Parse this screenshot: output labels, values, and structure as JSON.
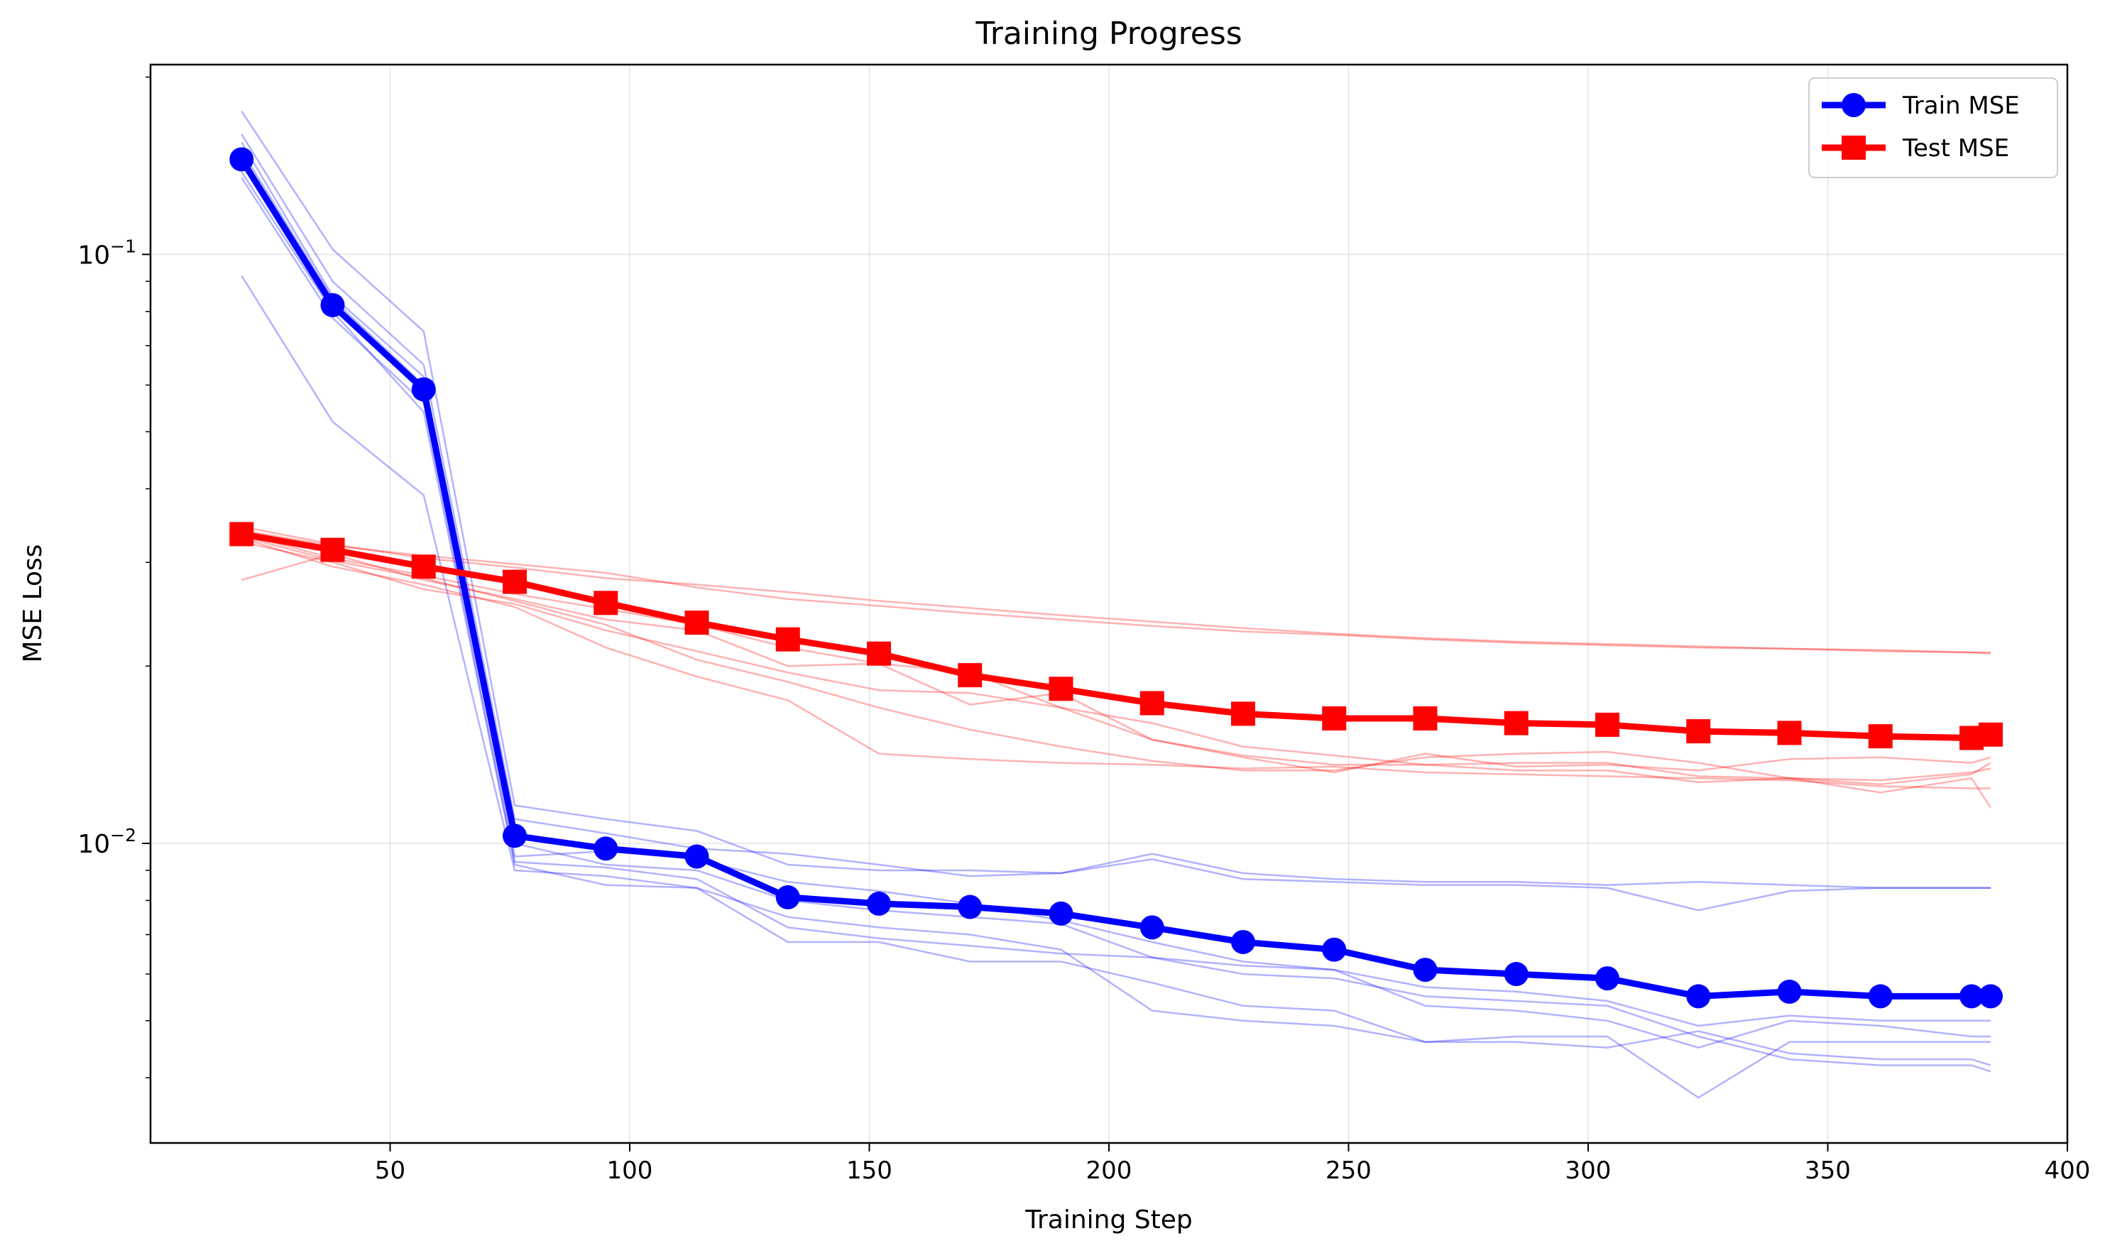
{
  "chart_data": {
    "type": "line",
    "title": "Training Progress",
    "xlabel": "Training Step",
    "ylabel": "MSE Loss",
    "xlim": [
      0,
      400
    ],
    "ylim": [
      0.0031,
      0.21
    ],
    "yscale": "log",
    "grid": true,
    "legend": "top-right",
    "x_ticks": [
      50,
      100,
      150,
      200,
      250,
      300,
      350,
      400
    ],
    "y_ticks": [
      {
        "value": 0.1,
        "base": "10",
        "exp": "−1"
      },
      {
        "value": 0.01,
        "base": "10",
        "exp": "−2"
      }
    ],
    "x": [
      19,
      38,
      57,
      76,
      95,
      114,
      133,
      152,
      171,
      190,
      209,
      228,
      247,
      266,
      285,
      304,
      323,
      342,
      361,
      380,
      384
    ],
    "series": [
      {
        "name": "Train MSE",
        "color": "#0000ff",
        "marker": "circle",
        "values": [
          0.145,
          0.082,
          0.059,
          0.0103,
          0.0098,
          0.0095,
          0.0081,
          0.0079,
          0.0078,
          0.0076,
          0.0072,
          0.0068,
          0.0066,
          0.0061,
          0.006,
          0.0059,
          0.0055,
          0.0056,
          0.0055,
          0.0055,
          0.0055
        ]
      },
      {
        "name": "Test MSE",
        "color": "#ff0000",
        "marker": "square",
        "values": [
          0.0335,
          0.0315,
          0.0295,
          0.0278,
          0.0256,
          0.0237,
          0.0222,
          0.021,
          0.0193,
          0.0183,
          0.0173,
          0.0166,
          0.0163,
          0.0163,
          0.016,
          0.0159,
          0.0155,
          0.0154,
          0.0152,
          0.0151,
          0.0153
        ]
      }
    ],
    "runs_train": [
      [
        0.175,
        0.102,
        0.074,
        0.0116,
        0.011,
        0.0105,
        0.0092,
        0.009,
        0.009,
        0.0089,
        0.0096,
        0.0089,
        0.0087,
        0.0086,
        0.0086,
        0.0085,
        0.0086,
        0.0085,
        0.0084,
        0.0084,
        0.0084
      ],
      [
        0.16,
        0.09,
        0.065,
        0.011,
        0.0104,
        0.0098,
        0.0096,
        0.0092,
        0.0088,
        0.0089,
        0.0094,
        0.0087,
        0.0086,
        0.0085,
        0.0085,
        0.0084,
        0.0077,
        0.0083,
        0.0084,
        0.0084,
        0.0084
      ],
      [
        0.155,
        0.085,
        0.062,
        0.0095,
        0.0097,
        0.0094,
        0.0086,
        0.0083,
        0.0079,
        0.0074,
        0.0068,
        0.0063,
        0.0061,
        0.0053,
        0.0052,
        0.005,
        0.0045,
        0.005,
        0.0049,
        0.0047,
        0.0047
      ],
      [
        0.135,
        0.078,
        0.056,
        0.0093,
        0.0091,
        0.0087,
        0.0072,
        0.0069,
        0.0067,
        0.0065,
        0.0064,
        0.0062,
        0.0061,
        0.0057,
        0.0056,
        0.0054,
        0.0049,
        0.0051,
        0.005,
        0.005,
        0.005
      ],
      [
        0.138,
        0.08,
        0.054,
        0.0092,
        0.0085,
        0.0084,
        0.0068,
        0.0068,
        0.0063,
        0.0063,
        0.0058,
        0.0053,
        0.0052,
        0.0046,
        0.0046,
        0.0045,
        0.0048,
        0.0044,
        0.0043,
        0.0043,
        0.0042
      ],
      [
        0.092,
        0.052,
        0.039,
        0.009,
        0.0088,
        0.0084,
        0.0075,
        0.0072,
        0.007,
        0.0066,
        0.0052,
        0.005,
        0.0049,
        0.0046,
        0.0047,
        0.0047,
        0.0037,
        0.0046,
        0.0046,
        0.0046,
        0.0046
      ],
      [
        0.15,
        0.084,
        0.06,
        0.01,
        0.0092,
        0.009,
        0.008,
        0.0077,
        0.0075,
        0.0073,
        0.0064,
        0.006,
        0.0059,
        0.0055,
        0.0054,
        0.0053,
        0.0047,
        0.0043,
        0.0042,
        0.0042,
        0.0041
      ]
    ],
    "runs_test": [
      [
        0.0345,
        0.0322,
        0.0305,
        0.0294,
        0.0282,
        0.0275,
        0.0267,
        0.0258,
        0.0251,
        0.0244,
        0.0238,
        0.0232,
        0.0227,
        0.0223,
        0.022,
        0.0218,
        0.0216,
        0.0214,
        0.0213,
        0.0211,
        0.021
      ],
      [
        0.034,
        0.032,
        0.0308,
        0.0298,
        0.0288,
        0.0272,
        0.026,
        0.0253,
        0.0246,
        0.024,
        0.0234,
        0.0229,
        0.0226,
        0.0222,
        0.0219,
        0.0217,
        0.0215,
        0.0214,
        0.0212,
        0.0211,
        0.0211
      ],
      [
        0.028,
        0.031,
        0.028,
        0.026,
        0.024,
        0.023,
        0.02,
        0.0202,
        0.0172,
        0.018,
        0.015,
        0.014,
        0.0132,
        0.0142,
        0.0135,
        0.0136,
        0.0133,
        0.0139,
        0.014,
        0.0137,
        0.014
      ],
      [
        0.0335,
        0.0305,
        0.0285,
        0.0265,
        0.025,
        0.0235,
        0.0215,
        0.0202,
        0.0195,
        0.017,
        0.015,
        0.0141,
        0.0136,
        0.0136,
        0.0133,
        0.0133,
        0.0127,
        0.0129,
        0.0122,
        0.0129,
        0.0115
      ],
      [
        0.0325,
        0.03,
        0.027,
        0.0255,
        0.023,
        0.0212,
        0.0195,
        0.0182,
        0.018,
        0.017,
        0.016,
        0.0146,
        0.0141,
        0.0136,
        0.0137,
        0.0137,
        0.013,
        0.0129,
        0.0128,
        0.0132,
        0.0134
      ],
      [
        0.033,
        0.0295,
        0.0275,
        0.0252,
        0.0215,
        0.0192,
        0.0175,
        0.0142,
        0.0139,
        0.0137,
        0.0136,
        0.0134,
        0.0135,
        0.0132,
        0.0131,
        0.013,
        0.0129,
        0.0128,
        0.0125,
        0.0124,
        0.0124
      ],
      [
        0.0332,
        0.0302,
        0.0282,
        0.0258,
        0.0235,
        0.0205,
        0.0188,
        0.017,
        0.0156,
        0.0146,
        0.0138,
        0.0133,
        0.0133,
        0.014,
        0.0142,
        0.0143,
        0.0137,
        0.0129,
        0.0126,
        0.0131,
        0.0137
      ]
    ]
  }
}
